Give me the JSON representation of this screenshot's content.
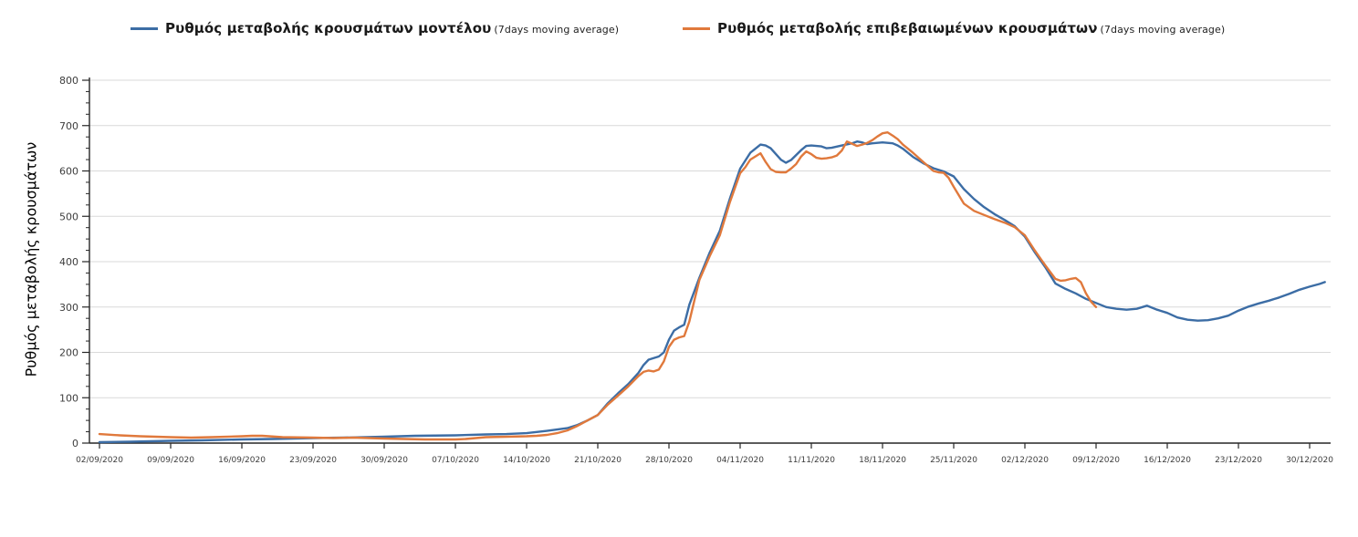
{
  "legend": {
    "items": [
      {
        "label": "Ρυθμός μεταβολής κρουσμάτων μοντέλου",
        "suffix": "(7days moving average)",
        "color": "#3c6da5"
      },
      {
        "label": "Ρυθμός μεταβολής επιβεβαιωμένων κρουσμάτων",
        "suffix": "(7days moving average)",
        "color": "#e0793c"
      }
    ]
  },
  "y_axis": {
    "title": "Ρυθμός μεταβολής κρουσμάτων",
    "min": 0,
    "max": 800,
    "major_step": 100,
    "minor_step": 25,
    "tick_labels": [
      "0",
      "100",
      "200",
      "300",
      "400",
      "500",
      "600",
      "700",
      "800"
    ]
  },
  "x_axis": {
    "tick_labels": [
      "02/09/2020",
      "09/09/2020",
      "16/09/2020",
      "23/09/2020",
      "30/09/2020",
      "07/10/2020",
      "14/10/2020",
      "21/10/2020",
      "28/10/2020",
      "04/11/2020",
      "11/11/2020",
      "18/11/2020",
      "25/11/2020",
      "02/12/2020",
      "09/12/2020",
      "16/12/2020",
      "23/12/2020",
      "30/12/2020"
    ],
    "days_between_ticks": 7
  },
  "chart_data": {
    "type": "line",
    "title": "",
    "xlabel": "",
    "ylabel": "Ρυθμός μεταβολής κρουσμάτων",
    "ylim": [
      0,
      800
    ],
    "grid": "horizontal gridlines every 100",
    "legend_position": "top",
    "x_unit": "days since 02/09/2020 (weekly labelled ticks)",
    "series": [
      {
        "name": "Ρυθμός μεταβολής κρουσμάτων μοντέλου (7days moving average)",
        "color": "#3c6da5",
        "points": [
          [
            0,
            2
          ],
          [
            3,
            3
          ],
          [
            7,
            5
          ],
          [
            10,
            6
          ],
          [
            14,
            8
          ],
          [
            17,
            9
          ],
          [
            21,
            11
          ],
          [
            24,
            12
          ],
          [
            28,
            14
          ],
          [
            31,
            16
          ],
          [
            35,
            17
          ],
          [
            38,
            19
          ],
          [
            40,
            20
          ],
          [
            42,
            22
          ],
          [
            44,
            27
          ],
          [
            46,
            33
          ],
          [
            47,
            40
          ],
          [
            48,
            50
          ],
          [
            49,
            62
          ],
          [
            50,
            88
          ],
          [
            51,
            110
          ],
          [
            52,
            130
          ],
          [
            53,
            155
          ],
          [
            53.5,
            172
          ],
          [
            54,
            184
          ],
          [
            55,
            191
          ],
          [
            55.5,
            200
          ],
          [
            56,
            228
          ],
          [
            56.5,
            248
          ],
          [
            57,
            255
          ],
          [
            57.5,
            261
          ],
          [
            58,
            305
          ],
          [
            59,
            365
          ],
          [
            60,
            420
          ],
          [
            61,
            468
          ],
          [
            62,
            540
          ],
          [
            63,
            605
          ],
          [
            64,
            640
          ],
          [
            65,
            658
          ],
          [
            65.5,
            656
          ],
          [
            66,
            650
          ],
          [
            67,
            625
          ],
          [
            67.5,
            618
          ],
          [
            68,
            624
          ],
          [
            69,
            646
          ],
          [
            69.5,
            655
          ],
          [
            70,
            656
          ],
          [
            71,
            654
          ],
          [
            71.5,
            650
          ],
          [
            72,
            651
          ],
          [
            73,
            656
          ],
          [
            74,
            661
          ],
          [
            74.5,
            665
          ],
          [
            75,
            663
          ],
          [
            75.5,
            659
          ],
          [
            76,
            661
          ],
          [
            77,
            663
          ],
          [
            78,
            661
          ],
          [
            78.5,
            656
          ],
          [
            79,
            649
          ],
          [
            80,
            631
          ],
          [
            81,
            617
          ],
          [
            82,
            606
          ],
          [
            83,
            599
          ],
          [
            84,
            588
          ],
          [
            85,
            560
          ],
          [
            86,
            538
          ],
          [
            87,
            520
          ],
          [
            88,
            505
          ],
          [
            89,
            492
          ],
          [
            90,
            478
          ],
          [
            91,
            455
          ],
          [
            92,
            420
          ],
          [
            93,
            388
          ],
          [
            94,
            352
          ],
          [
            95,
            340
          ],
          [
            96,
            330
          ],
          [
            97,
            318
          ],
          [
            98,
            309
          ],
          [
            99,
            300
          ],
          [
            100,
            296
          ],
          [
            101,
            294
          ],
          [
            102,
            296
          ],
          [
            103,
            303
          ],
          [
            104,
            294
          ],
          [
            105,
            287
          ],
          [
            106,
            277
          ],
          [
            107,
            272
          ],
          [
            108,
            270
          ],
          [
            109,
            271
          ],
          [
            110,
            275
          ],
          [
            111,
            281
          ],
          [
            112,
            292
          ],
          [
            113,
            301
          ],
          [
            114,
            308
          ],
          [
            115,
            314
          ],
          [
            116,
            321
          ],
          [
            117,
            329
          ],
          [
            118,
            338
          ],
          [
            119,
            345
          ],
          [
            120,
            351
          ],
          [
            120.5,
            355
          ]
        ]
      },
      {
        "name": "Ρυθμός μεταβολής επιβεβαιωμένων κρουσμάτων (7days moving average)",
        "color": "#e0793c",
        "points": [
          [
            0,
            20
          ],
          [
            2,
            17
          ],
          [
            4,
            15
          ],
          [
            7,
            13
          ],
          [
            9,
            12
          ],
          [
            11,
            13
          ],
          [
            14,
            15
          ],
          [
            15,
            16
          ],
          [
            16,
            16
          ],
          [
            18,
            13
          ],
          [
            21,
            12
          ],
          [
            23,
            11
          ],
          [
            25,
            12
          ],
          [
            28,
            10
          ],
          [
            30,
            9
          ],
          [
            32,
            8
          ],
          [
            35,
            8
          ],
          [
            36,
            9
          ],
          [
            37,
            11
          ],
          [
            38,
            13
          ],
          [
            40,
            14
          ],
          [
            42,
            15
          ],
          [
            43,
            16
          ],
          [
            44,
            18
          ],
          [
            45,
            22
          ],
          [
            46,
            28
          ],
          [
            47,
            38
          ],
          [
            48,
            50
          ],
          [
            49,
            62
          ],
          [
            50,
            85
          ],
          [
            51,
            105
          ],
          [
            52,
            125
          ],
          [
            53,
            148
          ],
          [
            53.5,
            157
          ],
          [
            54,
            160
          ],
          [
            54.5,
            158
          ],
          [
            55,
            162
          ],
          [
            55.5,
            180
          ],
          [
            56,
            212
          ],
          [
            56.5,
            228
          ],
          [
            57,
            233
          ],
          [
            57.5,
            236
          ],
          [
            58,
            268
          ],
          [
            58.5,
            315
          ],
          [
            59,
            360
          ],
          [
            60,
            412
          ],
          [
            61,
            458
          ],
          [
            62,
            532
          ],
          [
            63,
            595
          ],
          [
            63.5,
            608
          ],
          [
            64,
            625
          ],
          [
            65,
            639
          ],
          [
            65.5,
            620
          ],
          [
            66,
            604
          ],
          [
            66.5,
            598
          ],
          [
            67,
            597
          ],
          [
            67.5,
            597
          ],
          [
            68,
            605
          ],
          [
            68.5,
            615
          ],
          [
            69,
            632
          ],
          [
            69.5,
            643
          ],
          [
            70,
            637
          ],
          [
            70.5,
            629
          ],
          [
            71,
            627
          ],
          [
            71.5,
            628
          ],
          [
            72,
            630
          ],
          [
            72.5,
            634
          ],
          [
            73,
            645
          ],
          [
            73.5,
            665
          ],
          [
            74,
            660
          ],
          [
            74.5,
            655
          ],
          [
            75,
            658
          ],
          [
            75.5,
            662
          ],
          [
            76,
            668
          ],
          [
            76.5,
            676
          ],
          [
            77,
            683
          ],
          [
            77.5,
            685
          ],
          [
            78,
            678
          ],
          [
            78.5,
            670
          ],
          [
            79,
            658
          ],
          [
            80,
            640
          ],
          [
            81,
            620
          ],
          [
            82,
            600
          ],
          [
            82.5,
            597
          ],
          [
            83,
            596
          ],
          [
            83.5,
            585
          ],
          [
            84,
            565
          ],
          [
            85,
            528
          ],
          [
            86,
            512
          ],
          [
            87,
            503
          ],
          [
            88,
            494
          ],
          [
            89,
            486
          ],
          [
            90,
            476
          ],
          [
            91,
            458
          ],
          [
            92,
            424
          ],
          [
            93,
            392
          ],
          [
            94,
            362
          ],
          [
            94.5,
            358
          ],
          [
            95,
            359
          ],
          [
            95.5,
            362
          ],
          [
            96,
            364
          ],
          [
            96.5,
            355
          ],
          [
            97,
            330
          ],
          [
            97.5,
            312
          ],
          [
            98,
            300
          ]
        ]
      }
    ]
  },
  "colors": {
    "background": "#ffffff",
    "gridline": "#d9d9d9",
    "axis": "#262626",
    "tick_label": "#3d3d3d",
    "series_model": "#3c6da5",
    "series_confirmed": "#e0793c"
  }
}
